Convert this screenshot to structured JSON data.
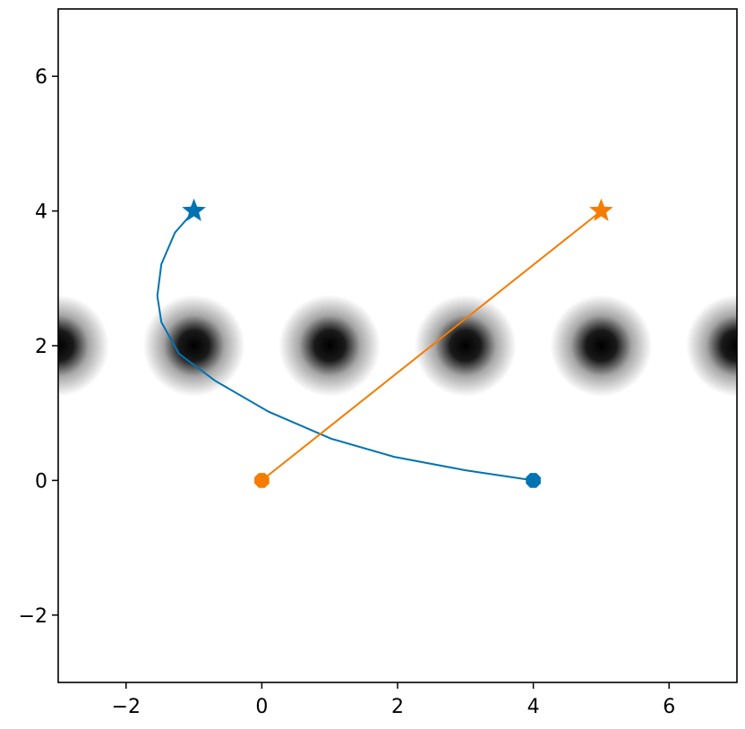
{
  "chart_data": {
    "type": "line",
    "xlim": [
      -3,
      7
    ],
    "ylim": [
      -3,
      7
    ],
    "xticks": [
      {
        "value": -2,
        "label": "−2"
      },
      0,
      2,
      4,
      6
    ],
    "yticks": [
      {
        "value": -2,
        "label": "−2"
      },
      0,
      2,
      4,
      6
    ],
    "obstacles": {
      "x": [
        -3,
        -1,
        1,
        3,
        5,
        7
      ],
      "y": [
        2,
        2,
        2,
        2,
        2,
        2
      ],
      "color": "#000000"
    },
    "series": [
      {
        "color": "#0173b2",
        "x": [
          4,
          3.0,
          1.95,
          1.02,
          0.1,
          -0.69,
          -1.22,
          -1.48,
          -1.54,
          -1.48,
          -1.28,
          -1
        ],
        "values": [
          0,
          0.15,
          0.35,
          0.62,
          1.02,
          1.48,
          1.88,
          2.35,
          2.74,
          3.21,
          3.68,
          4
        ]
      },
      {
        "color": "#f57c00",
        "x": [
          0,
          5
        ],
        "values": [
          0,
          4
        ]
      }
    ]
  }
}
